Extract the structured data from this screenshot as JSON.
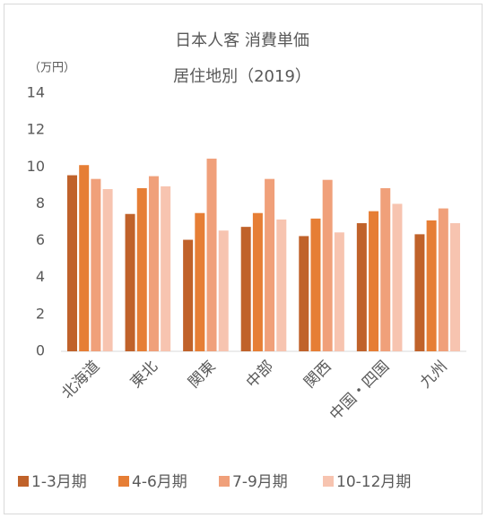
{
  "chart_data": {
    "type": "bar",
    "title": "日本人客 消費単価",
    "subtitle": "居住地別（2019）",
    "y_label": "（万円）",
    "categories": [
      "北海道",
      "東北",
      "関東",
      "中部",
      "関西",
      "中国・四国",
      "九州"
    ],
    "series": [
      {
        "name": "1-3月期",
        "color": "#c0622a",
        "values": [
          9.55,
          7.45,
          6.05,
          6.75,
          6.25,
          6.95,
          6.35
        ]
      },
      {
        "name": "4-6月期",
        "color": "#e67e35",
        "values": [
          10.1,
          8.85,
          7.5,
          7.5,
          7.2,
          7.6,
          7.1
        ]
      },
      {
        "name": "7-9月期",
        "color": "#f0a07a",
        "values": [
          9.35,
          9.5,
          10.45,
          9.35,
          9.3,
          8.85,
          7.75
        ]
      },
      {
        "name": "10-12月期",
        "color": "#f7c4b0",
        "values": [
          8.8,
          8.95,
          6.55,
          7.15,
          6.45,
          8.0,
          6.95
        ]
      }
    ],
    "ylim": [
      0,
      14
    ],
    "yticks": [
      0,
      2,
      4,
      6,
      8,
      10,
      12,
      14
    ],
    "grid": false,
    "legend": "bottom"
  }
}
